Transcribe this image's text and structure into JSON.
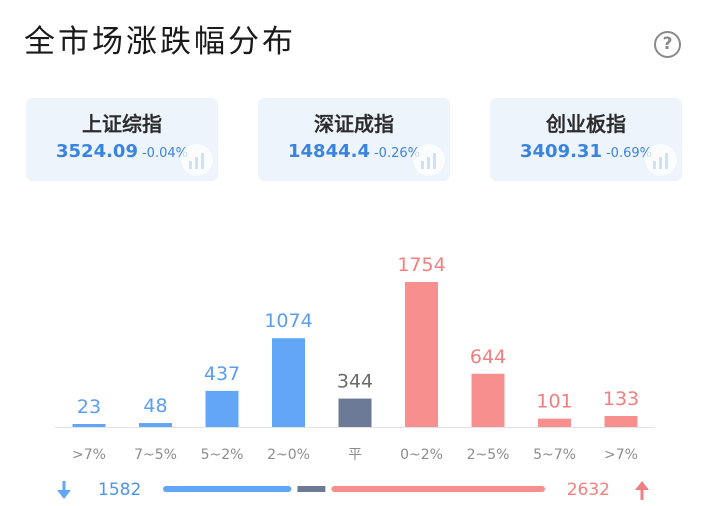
{
  "page": {
    "title": "全市场涨跌幅分布",
    "help_icon_glyph": "?"
  },
  "indices": [
    {
      "name": "上证综指",
      "value": "3524.09",
      "change": "-0.04%"
    },
    {
      "name": "深证成指",
      "value": "14844.4",
      "change": "-0.26%"
    },
    {
      "name": "创业板指",
      "value": "3409.31",
      "change": "-0.69%"
    }
  ],
  "colors": {
    "down": "#62a6f7",
    "flat": "#6c7a98",
    "up": "#f88f8f",
    "card_bg": "#edf4fc"
  },
  "chart_data": {
    "type": "bar",
    "categories": [
      ">7%",
      "7~5%",
      "5~2%",
      "2~0%",
      "平",
      "0~2%",
      "2~5%",
      "5~7%",
      ">7%"
    ],
    "values": [
      23,
      48,
      437,
      1074,
      344,
      1754,
      644,
      101,
      133
    ],
    "groups": [
      "down",
      "down",
      "down",
      "down",
      "flat",
      "up",
      "up",
      "up",
      "up"
    ]
  },
  "summary": {
    "down_count": "1582",
    "up_count": "2632",
    "down_icon": "arrow-down-icon",
    "up_icon": "arrow-up-icon"
  }
}
